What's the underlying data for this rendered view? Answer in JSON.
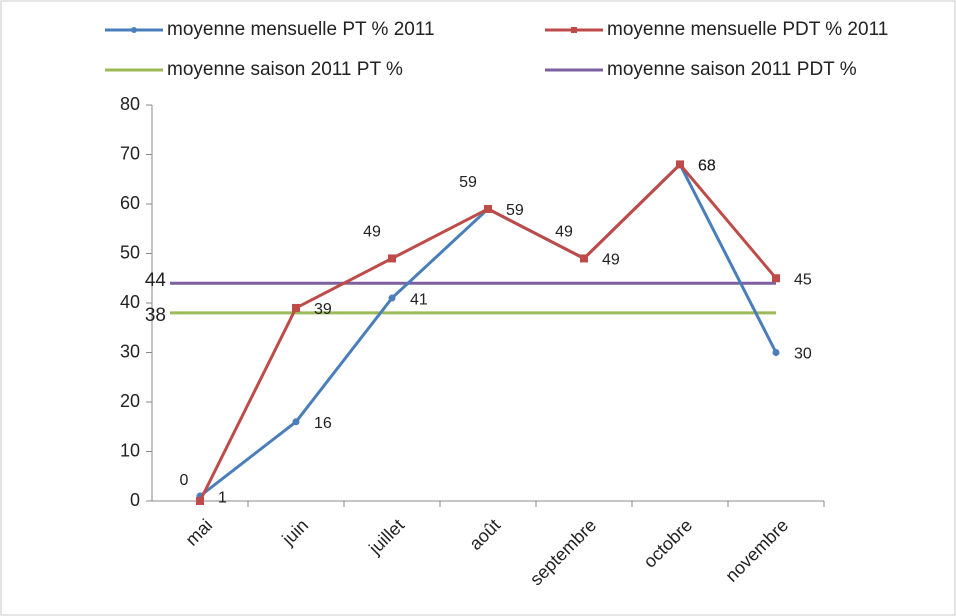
{
  "chart_data": {
    "type": "line",
    "categories": [
      "mai",
      "juin",
      "juillet",
      "août",
      "septembre",
      "octobre",
      "novembre"
    ],
    "series": [
      {
        "name": "moyenne mensuelle PT % 2011",
        "color": "#4a7ebb",
        "values": [
          1,
          16,
          41,
          59,
          49,
          68,
          30
        ]
      },
      {
        "name": "moyenne mensuelle PDT % 2011",
        "color": "#be4b48",
        "values": [
          0,
          39,
          49,
          59,
          49,
          68,
          45
        ]
      }
    ],
    "reference_lines": [
      {
        "name": "moyenne saison 2011 PT %",
        "color": "#9bbb59",
        "value": 38
      },
      {
        "name": "moyenne saison 2011 PDT %",
        "color": "#7d60a0",
        "value": 44
      }
    ],
    "ylim": [
      0,
      80
    ],
    "yticks": [
      0,
      10,
      20,
      30,
      40,
      50,
      60,
      70,
      80
    ]
  }
}
